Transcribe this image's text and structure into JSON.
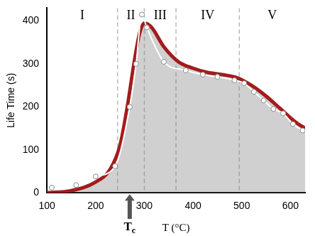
{
  "chart_data": {
    "type": "line",
    "x_label": "T (°C)",
    "y_label": "Life Time (s)",
    "xlim": [
      100,
      630
    ],
    "xticks": [
      100,
      200,
      300,
      400,
      500,
      600
    ],
    "ylim": [
      0,
      430
    ],
    "yticks": [
      0,
      100,
      200,
      300,
      400
    ],
    "grid": false,
    "series": [
      {
        "color": "#a31c1c",
        "marker": "none",
        "line_style": "solid",
        "x": [
          100,
          150,
          200,
          230,
          250,
          265,
          280,
          290,
          300,
          315,
          340,
          370,
          400,
          430,
          460,
          490,
          520,
          550,
          580,
          610,
          630
        ],
        "values": [
          0,
          5,
          25,
          55,
          110,
          200,
          310,
          370,
          395,
          385,
          340,
          305,
          290,
          280,
          275,
          268,
          250,
          225,
          195,
          165,
          150
        ]
      },
      {
        "color": "#ffffff",
        "marker": "circle",
        "line_style": "solid",
        "x": [
          110,
          160,
          200,
          240,
          270,
          283,
          295,
          305,
          340,
          385,
          420,
          450,
          485,
          505,
          525,
          545,
          565,
          585,
          605,
          625
        ],
        "values": [
          12,
          18,
          38,
          62,
          200,
          300,
          415,
          385,
          305,
          285,
          275,
          270,
          262,
          255,
          235,
          215,
          195,
          185,
          160,
          145
        ]
      }
    ],
    "regions": [
      {
        "label": "I",
        "start": 100,
        "end": 245
      },
      {
        "label": "II",
        "start": 245,
        "end": 300
      },
      {
        "label": "III",
        "start": 300,
        "end": 365
      },
      {
        "label": "IV",
        "start": 365,
        "end": 495
      },
      {
        "label": "V",
        "start": 495,
        "end": 630
      }
    ],
    "annotations": [
      {
        "text": "Tc",
        "x": 270
      }
    ]
  }
}
